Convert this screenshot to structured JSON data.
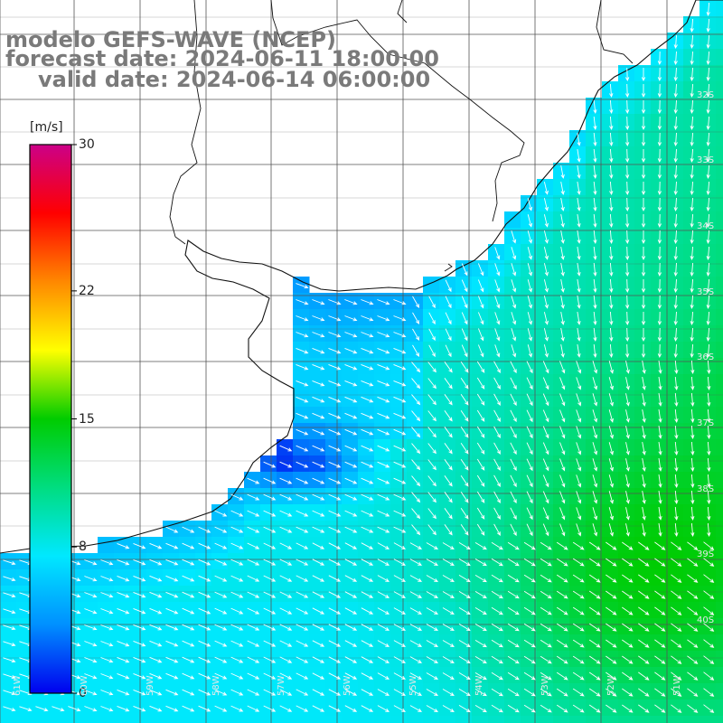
{
  "title": {
    "model": "modelo GEFS-WAVE (NCEP)",
    "forecast": "forecast date: 2024-06-11 18:00:00",
    "valid": "valid date: 2024-06-14 06:00:00"
  },
  "colorbar": {
    "unit": "[m/s]",
    "min": 0,
    "max": 30,
    "ticks": [
      {
        "value": 30,
        "label": "30"
      },
      {
        "value": 22,
        "label": "22"
      },
      {
        "value": 15,
        "label": "15"
      },
      {
        "value": 8,
        "label": "8"
      },
      {
        "value": 0,
        "label": "0"
      }
    ],
    "colors": [
      "#0000ee",
      "#0090ff",
      "#00e8ff",
      "#00dd80",
      "#00cc00",
      "#ffff00",
      "#ff8800",
      "#ff0000",
      "#cc0088"
    ]
  },
  "map": {
    "land_color": "#ffffff",
    "grid_color": "#555555",
    "coast_color": "#111111",
    "arrow_color": "#ffffff",
    "lon_labels": [
      "61W",
      "60W",
      "59W",
      "58W",
      "57W",
      "56W",
      "55W",
      "54W",
      "53W",
      "52W",
      "51W"
    ],
    "lat_labels": [
      "32S",
      "33S",
      "34S",
      "35S",
      "36S",
      "37S",
      "38S",
      "39S",
      "40S"
    ]
  }
}
